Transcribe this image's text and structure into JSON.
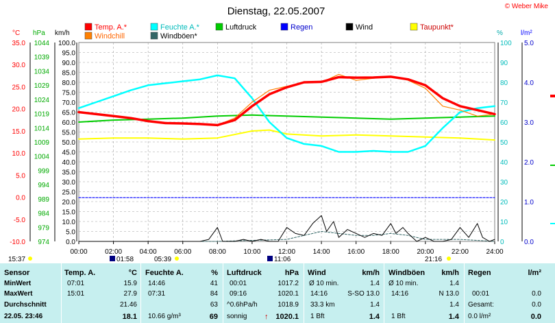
{
  "header": {
    "title": "Dienstag, 22.05.2007",
    "brand": "© Weber Mike"
  },
  "legend": [
    {
      "label": "Temp. A.*",
      "color": "#ff0000"
    },
    {
      "label": "Feuchte A.*",
      "color": "#00ffff"
    },
    {
      "label": "Luftdruck",
      "color": "#00cc00"
    },
    {
      "label": "Regen",
      "color": "#0000ff"
    },
    {
      "label": "Wind",
      "color": "#000000"
    },
    {
      "label": "Taupunkt*",
      "color": "#ffff00"
    },
    {
      "label": "Windchill",
      "color": "#ff8000"
    },
    {
      "label": "Windböen*",
      "color": "#336666"
    }
  ],
  "axes": {
    "temp_unit": "°C",
    "press_unit": "hPa",
    "wind_unit": "km/h",
    "hum_unit": "%",
    "rain_unit": "l/m²",
    "temp_ticks": [
      "35.0",
      "30.0",
      "25.0",
      "20.0",
      "15.0",
      "10.0",
      "5.0",
      "0.0",
      "-5.0",
      "-10.0"
    ],
    "press_ticks": [
      "1044",
      "1039",
      "1034",
      "1029",
      "1024",
      "1019",
      "1014",
      "1009",
      "1004",
      "999",
      "994",
      "989",
      "984",
      "979",
      "974"
    ],
    "wind_ticks": [
      "100.0",
      "95.0",
      "90.0",
      "85.0",
      "80.0",
      "75.0",
      "70.0",
      "65.0",
      "60.0",
      "55.0",
      "50.0",
      "45.0",
      "40.0",
      "35.0",
      "30.0",
      "25.0",
      "20.0",
      "15.0",
      "10.0",
      "5.0",
      "0.0"
    ],
    "hum_ticks": [
      "100",
      "90",
      "80",
      "70",
      "60",
      "50",
      "40",
      "30",
      "20",
      "10",
      "0"
    ],
    "rain_ticks": [
      "5.0",
      "4.0",
      "3.0",
      "2.0",
      "1.0",
      "0.0"
    ],
    "x_ticks": [
      "00:00",
      "02:00",
      "04:00",
      "06:00",
      "08:00",
      "10:00",
      "12:00",
      "14:00",
      "16:00",
      "18:00",
      "20:00",
      "22:00",
      "24:00"
    ]
  },
  "sun": {
    "yesterday_sunset": "15:37",
    "moonrise": "01:58",
    "sunrise": "05:39",
    "moonset": "11:06",
    "sunset": "21:16"
  },
  "chart_data": {
    "type": "line",
    "x_unit": "hours",
    "xlim": [
      0,
      24
    ],
    "series": [
      {
        "name": "Temp. A.*",
        "axis": "wind_scale",
        "color": "#ff0000",
        "x": [
          0,
          1,
          2,
          3,
          4,
          5,
          6,
          7,
          8,
          9,
          10,
          11,
          12,
          13,
          14,
          15,
          16,
          17,
          18,
          19,
          20,
          21,
          22,
          23,
          24
        ],
        "y": [
          65,
          64,
          63,
          62,
          60.5,
          59.5,
          59.3,
          59,
          58.5,
          61,
          68,
          74,
          77.5,
          80,
          80.2,
          82.6,
          82.3,
          82.4,
          82.8,
          81.5,
          78.5,
          72,
          68,
          66,
          64
        ]
      },
      {
        "name": "Windchill",
        "axis": "wind_scale",
        "color": "#ff8000",
        "x": [
          0,
          1,
          2,
          3,
          4,
          5,
          6,
          7,
          8,
          9,
          10,
          11,
          12,
          13,
          14,
          15,
          16,
          17,
          18,
          19,
          20,
          21,
          22,
          23,
          24
        ],
        "y": [
          65,
          64,
          63,
          62,
          60.5,
          59.5,
          59.3,
          59,
          58.5,
          62,
          70,
          76,
          78,
          80,
          80,
          84,
          81,
          82,
          83,
          81,
          77,
          68,
          66,
          63,
          64
        ]
      },
      {
        "name": "Feuchte A.*",
        "axis": "wind_scale",
        "color": "#00ffff",
        "x": [
          0,
          1,
          2,
          3,
          4,
          5,
          6,
          7,
          8,
          9,
          10,
          11,
          12,
          13,
          14,
          15,
          16,
          17,
          18,
          19,
          20,
          21,
          22,
          23,
          24
        ],
        "y": [
          67,
          70,
          73,
          76,
          78.5,
          79.5,
          80.5,
          81.5,
          83.5,
          82,
          72,
          60,
          52,
          49,
          48,
          45,
          45,
          45.5,
          45,
          45,
          48,
          57,
          65,
          67,
          68
        ]
      },
      {
        "name": "Luftdruck",
        "axis": "wind_scale",
        "color": "#00cc00",
        "x": [
          0,
          2,
          4,
          6,
          8,
          10,
          12,
          14,
          16,
          18,
          20,
          22,
          24
        ],
        "y": [
          60,
          61,
          61.5,
          62,
          63,
          63.5,
          63,
          62.5,
          62,
          61.5,
          62,
          62.5,
          63
        ]
      },
      {
        "name": "Taupunkt*",
        "axis": "wind_scale",
        "color": "#ffff00",
        "x": [
          0,
          2,
          4,
          6,
          8,
          10,
          11,
          12,
          14,
          16,
          18,
          20,
          22,
          24
        ],
        "y": [
          51.5,
          52,
          52,
          51.5,
          52,
          55.5,
          56,
          54,
          53,
          53.5,
          53,
          52.5,
          52,
          51
        ]
      },
      {
        "name": "Regen",
        "axis": "wind_scale",
        "color": "#0000ff",
        "x": [
          0,
          24
        ],
        "y": [
          22,
          22
        ]
      },
      {
        "name": "Wind",
        "axis": "wind_scale",
        "color": "#000000",
        "x": [
          0,
          1,
          2,
          3,
          4,
          5,
          6,
          7,
          7.5,
          8,
          8.3,
          9,
          9.5,
          10,
          10.5,
          11,
          11.5,
          12,
          12.5,
          13,
          13.5,
          14,
          14.3,
          14.7,
          15,
          15.5,
          16,
          16.5,
          17,
          17.5,
          18,
          18.3,
          18.7,
          19,
          19.5,
          20,
          20.5,
          21,
          21.5,
          22,
          22.5,
          23,
          23.3,
          23.7,
          24
        ],
        "y": [
          0,
          0,
          0,
          0,
          0,
          0,
          0,
          0,
          1,
          7,
          0,
          0,
          1,
          0,
          1,
          0,
          0,
          7,
          4,
          3,
          9,
          13,
          5,
          10,
          2,
          6,
          4,
          2,
          4,
          3,
          9,
          4,
          7,
          4,
          0,
          2,
          0,
          0,
          1,
          7,
          2,
          9,
          2,
          0,
          1
        ]
      },
      {
        "name": "Windböen*",
        "axis": "wind_scale",
        "color": "#336666",
        "x": [
          0,
          4,
          8,
          12,
          13,
          14,
          15,
          16,
          17,
          18,
          19,
          20,
          22,
          24
        ],
        "y": [
          0,
          0,
          0,
          1,
          3,
          5,
          4,
          3,
          3,
          4,
          3,
          1,
          1,
          0
        ]
      }
    ]
  },
  "summary": {
    "sensor": {
      "header": "Sensor",
      "min": "MinWert",
      "max": "MaxWert",
      "avg": "Durchschnitt",
      "now": "22.05. 23:46"
    },
    "temp": {
      "header": "Temp. A.",
      "unit": "°C",
      "min_time": "07:01",
      "min_val": "15.9",
      "max_time": "15:01",
      "max_val": "27.9",
      "avg": "21.46",
      "now": "18.1"
    },
    "hum": {
      "header": "Feuchte A.",
      "unit": "%",
      "min_time": "14:46",
      "min_val": "41",
      "max_time": "07:31",
      "max_val": "84",
      "avg": "63",
      "abs": "10.66 g/m³",
      "now": "69"
    },
    "press": {
      "header": "Luftdruck",
      "unit": "hPa",
      "min_time": "00:01",
      "min_val": "1017.2",
      "max_time": "09:16",
      "max_val": "1020.1",
      "trend": "^0.6hPa/h",
      "avg": "1018.9",
      "weather": "sonnig",
      "now": "1020.1"
    },
    "wind": {
      "header": "Wind",
      "unit": "km/h",
      "min_label": "Ø 10 min.",
      "min_val": "1.4",
      "max_time": "14:16",
      "max_dir": "S-SO 13.0",
      "dist": "33.3 km",
      "avg": "1.4",
      "bft": "1 Bft",
      "now": "1.4"
    },
    "gust": {
      "header": "Windböen",
      "unit": "km/h",
      "min_label": "Ø 10 min.",
      "min_val": "1.4",
      "max_time": "14:16",
      "max_dir": "N 13.0",
      "avg": "1.4",
      "bft": "1 Bft",
      "now": "1.4"
    },
    "rain": {
      "header": "Regen",
      "unit": "l/m²",
      "max_time": "00:01",
      "max_val": "0.0",
      "total_label": "Gesamt:",
      "total_val": "0.0",
      "now_label": "0.0 l/m²",
      "now": "0.0"
    }
  }
}
